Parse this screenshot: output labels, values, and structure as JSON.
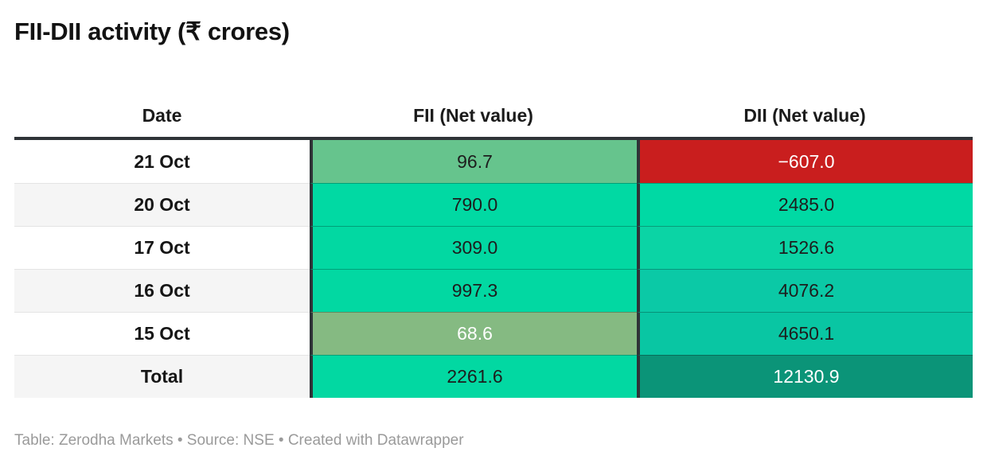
{
  "title": "FII-DII activity (₹ crores)",
  "table": {
    "columns": [
      "Date",
      "FII (Net value)",
      "DII (Net value)"
    ],
    "rows": [
      {
        "date": "21 Oct",
        "fii": "96.7",
        "dii": "−607.0",
        "date_bg": "#ffffff",
        "fii_bg": "#66c48d",
        "fii_text": "#1d1d1d",
        "dii_bg": "#c91e1e",
        "dii_text": "#ffffff"
      },
      {
        "date": "20 Oct",
        "fii": "790.0",
        "dii": "2485.0",
        "date_bg": "#f5f5f5",
        "fii_bg": "#01d9a3",
        "fii_text": "#1d1d1d",
        "dii_bg": "#00d9a4",
        "dii_text": "#1d1d1d"
      },
      {
        "date": "17 Oct",
        "fii": "309.0",
        "dii": "1526.6",
        "date_bg": "#ffffff",
        "fii_bg": "#02d8a2",
        "fii_text": "#1d1d1d",
        "dii_bg": "#0bd4a5",
        "dii_text": "#1d1d1d"
      },
      {
        "date": "16 Oct",
        "fii": "997.3",
        "dii": "4076.2",
        "date_bg": "#f5f5f5",
        "fii_bg": "#02d8a2",
        "fii_text": "#1d1d1d",
        "dii_bg": "#0bc9a6",
        "dii_text": "#1d1d1d"
      },
      {
        "date": "15 Oct",
        "fii": "68.6",
        "dii": "4650.1",
        "date_bg": "#ffffff",
        "fii_bg": "#85ba82",
        "fii_text": "#ffffff",
        "dii_bg": "#09c6a3",
        "dii_text": "#1d1d1d"
      },
      {
        "date": "Total",
        "fii": "2261.6",
        "dii": "12130.9",
        "date_bg": "#f5f5f5",
        "fii_bg": "#02d8a2",
        "fii_text": "#1d1d1d",
        "dii_bg": "#0b9478",
        "dii_text": "#ffffff"
      }
    ]
  },
  "footer": {
    "text": "Table: Zerodha Markets • Source: NSE • Created with Datawrapper"
  },
  "colors": {
    "header_border": "#2f3337",
    "positive_strong": "#02d8a2",
    "positive_muted": "#85ba82",
    "negative": "#c91e1e",
    "total_dark": "#0b9478",
    "footer_text": "#9a9a9a"
  },
  "chart_data": {
    "type": "table",
    "title": "FII-DII activity (₹ crores)",
    "columns": [
      "Date",
      "FII (Net value)",
      "DII (Net value)"
    ],
    "categories": [
      "21 Oct",
      "20 Oct",
      "17 Oct",
      "16 Oct",
      "15 Oct",
      "Total"
    ],
    "series": [
      {
        "name": "FII (Net value)",
        "values": [
          96.7,
          790.0,
          309.0,
          997.3,
          68.6,
          2261.6
        ]
      },
      {
        "name": "DII (Net value)",
        "values": [
          -607.0,
          2485.0,
          1526.6,
          4076.2,
          4650.1,
          12130.9
        ]
      }
    ],
    "layout_hints": "heatmap-colored table cells; green = positive inflow, red = negative; darker/desaturated shades scale with magnitude"
  }
}
